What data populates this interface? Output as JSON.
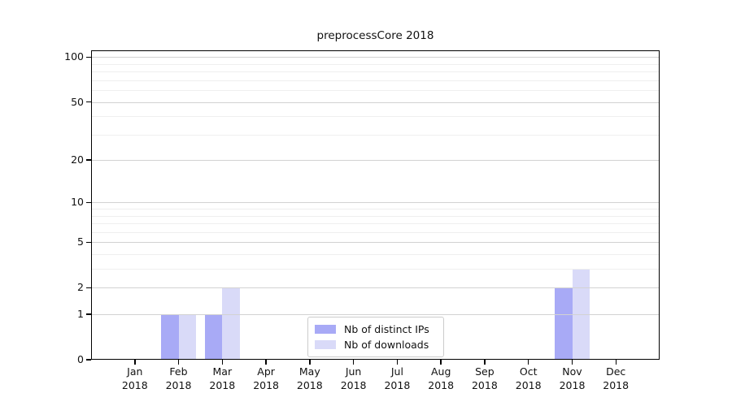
{
  "chart_data": {
    "type": "bar",
    "title": "preprocessCore 2018",
    "categories": [
      "Jan",
      "Feb",
      "Mar",
      "Apr",
      "May",
      "Jun",
      "Jul",
      "Aug",
      "Sep",
      "Oct",
      "Nov",
      "Dec"
    ],
    "year": "2018",
    "series": [
      {
        "name": "Nb of distinct IPs",
        "color": "#a8aaf6",
        "values": [
          0,
          1,
          1,
          0,
          0,
          0,
          0,
          0,
          0,
          0,
          2,
          0
        ]
      },
      {
        "name": "Nb of downloads",
        "color": "#d9daf8",
        "values": [
          0,
          1,
          2,
          0,
          0,
          0,
          0,
          0,
          0,
          0,
          3,
          0
        ]
      }
    ],
    "yscale": "log1p",
    "y_major_ticks": [
      0,
      1,
      2,
      5,
      10,
      20,
      50,
      100
    ],
    "y_minor_ticks": [
      3,
      4,
      6,
      7,
      8,
      9,
      30,
      40,
      60,
      70,
      80,
      90
    ],
    "ylim": [
      0,
      111
    ],
    "grid": true,
    "grid_above_bars": true,
    "legend_position": "lower center",
    "colors": {
      "grid_major": "#d2d2d2",
      "grid_minor": "#efefef",
      "spine": "#000000",
      "text": "#111111",
      "background": "#ffffff"
    }
  }
}
